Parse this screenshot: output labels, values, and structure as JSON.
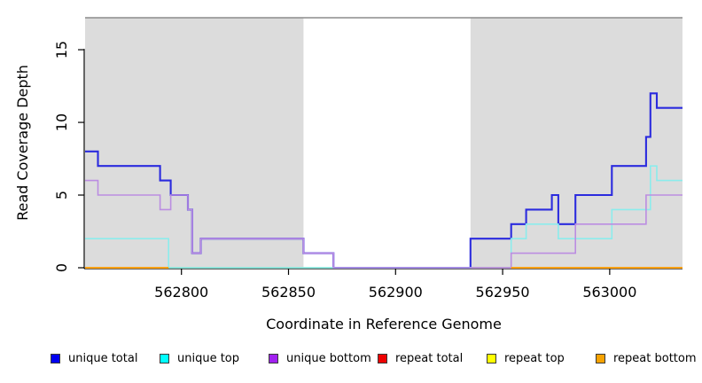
{
  "chart_data": {
    "type": "line",
    "subtype": "step-coverage-plot",
    "title": "",
    "xlabel": "Coordinate in Reference Genome",
    "ylabel": "Read Coverage Depth",
    "xlim": [
      562755,
      563034
    ],
    "ylim": [
      0,
      17.2
    ],
    "x_ticks": [
      562800,
      562850,
      562900,
      562950,
      563000
    ],
    "y_ticks": [
      0,
      5,
      10,
      15
    ],
    "grid": false,
    "legend_position": "bottom",
    "colors": {
      "plot_background": "#FFFFFF",
      "shaded_region": "#DCDCDC",
      "top_border": "#8C8C8C",
      "axis": "#000000"
    },
    "shaded_regions": [
      {
        "name": "left-gray-region",
        "x0": 562755,
        "x1": 562857
      },
      {
        "name": "right-gray-region",
        "x0": 562935,
        "x1": 563034
      }
    ],
    "series": [
      {
        "name": "unique total",
        "legend_color": "#0000F0",
        "line_color": "#2B2BDE",
        "line_width": 2.1,
        "segments": [
          [
            [
              562755,
              8
            ],
            [
              562761,
              7
            ],
            [
              562790,
              6
            ],
            [
              562795,
              5
            ],
            [
              562803,
              4
            ],
            [
              562805,
              1
            ],
            [
              562809,
              2
            ],
            [
              562857,
              1
            ],
            [
              562871,
              0
            ],
            [
              562935,
              2
            ],
            [
              562954,
              3
            ],
            [
              562961,
              4
            ],
            [
              562973,
              5
            ],
            [
              562976,
              3
            ],
            [
              562984,
              5
            ],
            [
              563001,
              7
            ],
            [
              563017,
              9
            ],
            [
              563019,
              12
            ],
            [
              563022,
              11
            ],
            [
              563034,
              11
            ]
          ]
        ]
      },
      {
        "name": "unique top",
        "legend_color": "#00FFFF",
        "line_color": "#8BECEC",
        "line_width": 1.6,
        "segments": [
          [
            [
              562755,
              2
            ],
            [
              562794,
              0
            ],
            [
              562954,
              2
            ],
            [
              562961,
              3
            ],
            [
              562976,
              2
            ],
            [
              563001,
              4
            ],
            [
              563019,
              7
            ],
            [
              563022,
              6
            ],
            [
              563034,
              6
            ]
          ]
        ]
      },
      {
        "name": "unique bottom",
        "legend_color": "#A121F0",
        "line_color": "#BB8DE1",
        "line_width": 1.6,
        "segments": [
          [
            [
              562755,
              6
            ],
            [
              562761,
              5
            ],
            [
              562790,
              4
            ],
            [
              562795,
              5
            ],
            [
              562803,
              4
            ],
            [
              562805,
              1
            ],
            [
              562809,
              2
            ],
            [
              562857,
              1
            ],
            [
              562871,
              0
            ],
            [
              562954,
              1
            ],
            [
              562984,
              3
            ],
            [
              563017,
              5
            ],
            [
              563034,
              5
            ]
          ]
        ]
      },
      {
        "name": "repeat total",
        "legend_color": "#EE0000",
        "line_color": "#D5545E",
        "line_width": 1.8,
        "segments": [
          [
            [
              562935,
              0
            ],
            [
              562954,
              0
            ]
          ]
        ]
      },
      {
        "name": "repeat top",
        "legend_color": "#FFFF00",
        "line_color": "#FFFF00",
        "line_width": 1.6,
        "segments": []
      },
      {
        "name": "repeat bottom",
        "legend_color": "#F6A200",
        "line_color": "#FFA113",
        "line_width": 1.9,
        "segments": [
          [
            [
              562755,
              0
            ],
            [
              562794,
              0
            ]
          ],
          [
            [
              562954,
              0
            ],
            [
              563034,
              0
            ]
          ]
        ]
      }
    ],
    "extra_lines": [
      {
        "name": "baseline-green-segment",
        "line_color": "#95E695",
        "line_width": 1.6,
        "segments": [
          [
            [
              562794,
              0
            ],
            [
              562871,
              0
            ]
          ]
        ]
      }
    ]
  }
}
